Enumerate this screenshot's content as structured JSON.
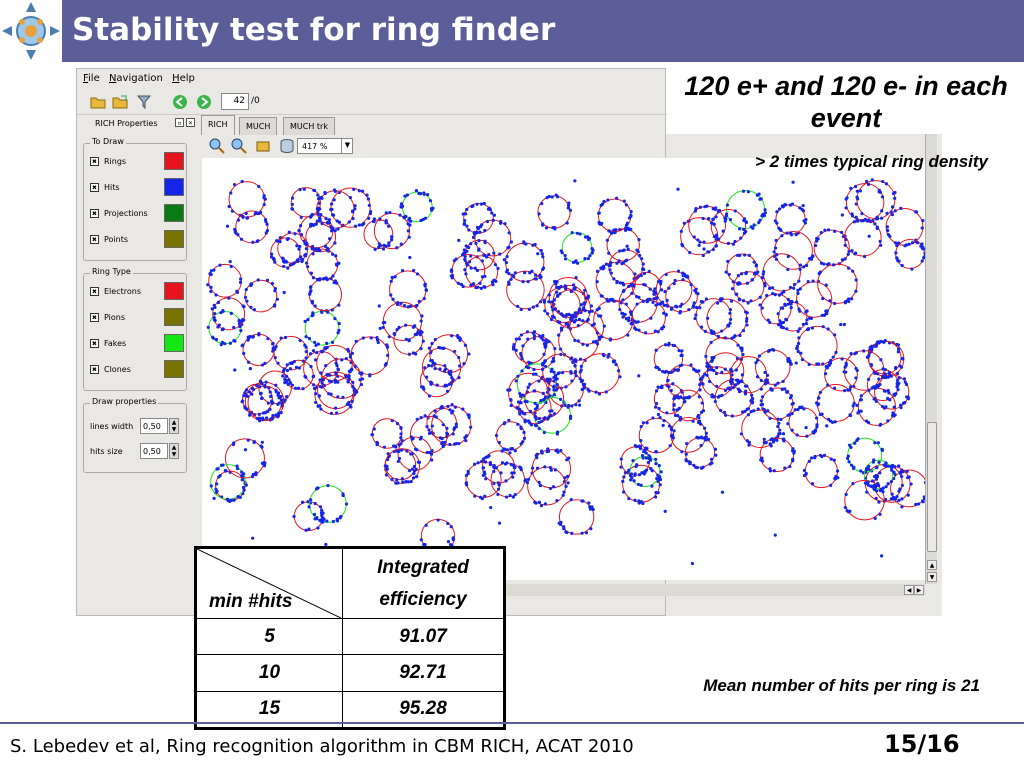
{
  "header": {
    "title": "Stability test for ring finder"
  },
  "app": {
    "menu": [
      "File",
      "Navigation",
      "Help"
    ],
    "toolbar": {
      "frame_value": "42",
      "frame_total": "/0"
    },
    "panel": {
      "title": "RICH Properties",
      "to_draw": {
        "title": "To Draw",
        "items": [
          {
            "label": "Rings",
            "color": "#e8141c"
          },
          {
            "label": "Hits",
            "color": "#1425e8"
          },
          {
            "label": "Projections",
            "color": "#0a7a12"
          },
          {
            "label": "Points",
            "color": "#7a7200"
          }
        ]
      },
      "ring_type": {
        "title": "Ring Type",
        "items": [
          {
            "label": "Electrons",
            "color": "#e8141c"
          },
          {
            "label": "Pions",
            "color": "#7a7200"
          },
          {
            "label": "Fakes",
            "color": "#14e814"
          },
          {
            "label": "Clones",
            "color": "#7a7200"
          }
        ]
      },
      "draw_props": {
        "title": "Draw properties",
        "lines_width_label": "lines width",
        "lines_width": "0,50",
        "hits_size_label": "hits size",
        "hits_size": "0,50"
      }
    },
    "tabs": [
      "RICH",
      "MUCH",
      "MUCH trk"
    ],
    "zoom": "417 %"
  },
  "heading": "120 e+ and 120 e- in each event",
  "density_note": "> 2 times typical ring density",
  "mean_note": "Mean number of hits per ring is 21",
  "table": {
    "col1_header": "min #hits",
    "col2_header_line1": "Integrated",
    "col2_header_line2": "efficiency",
    "rows": [
      {
        "min_hits": "5",
        "efficiency": "91.07"
      },
      {
        "min_hits": "10",
        "efficiency": "92.71"
      },
      {
        "min_hits": "15",
        "efficiency": "95.28"
      }
    ]
  },
  "footer": {
    "text": "S. Lebedev et al, Ring recognition algorithm in CBM RICH, ACAT 2010",
    "page": "15/16"
  }
}
